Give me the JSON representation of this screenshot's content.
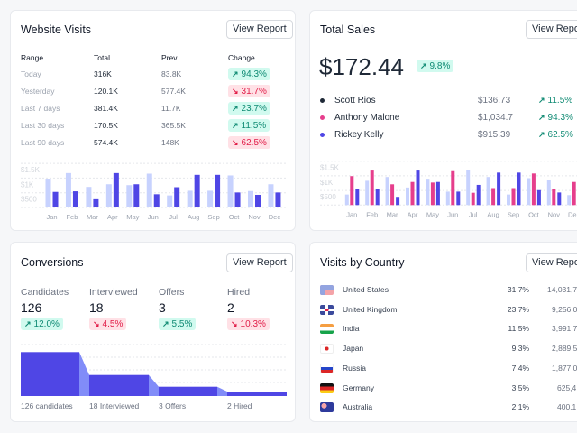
{
  "colors": {
    "accent": "#4f46e5",
    "accent_light": "#c7d2fe",
    "pink": "#e63e8c",
    "up_bg": "#d1faef",
    "up_text": "#0f8a73",
    "down_bg": "#ffe1e6",
    "down_text": "#e11d48"
  },
  "website_visits": {
    "title": "Website Visits",
    "button": "View Report",
    "headers": [
      "Range",
      "Total",
      "Prev",
      "Change"
    ],
    "rows": [
      {
        "range": "Today",
        "total": "316K",
        "prev": "83.8K",
        "change": "94.3%",
        "trend": "up"
      },
      {
        "range": "Yesterday",
        "total": "120.1K",
        "prev": "577.4K",
        "change": "31.7%",
        "trend": "down"
      },
      {
        "range": "Last 7 days",
        "total": "381.4K",
        "prev": "11.7K",
        "change": "23.7%",
        "trend": "up"
      },
      {
        "range": "Last 30 days",
        "total": "170.5K",
        "prev": "365.5K",
        "change": "11.5%",
        "trend": "up"
      },
      {
        "range": "Last 90 days",
        "total": "574.4K",
        "prev": "148K",
        "change": "62.5%",
        "trend": "down"
      }
    ]
  },
  "total_sales": {
    "title": "Total Sales",
    "button": "View Report",
    "amount": "$172.44",
    "change": "9.8%",
    "rows": [
      {
        "name": "Scott Rios",
        "amount": "$136.73",
        "change": "11.5%",
        "dot": "#1f2937"
      },
      {
        "name": "Anthony Malone",
        "amount": "$1,034.7",
        "change": "94.3%",
        "dot": "#e63e8c"
      },
      {
        "name": "Rickey Kelly",
        "amount": "$915.39",
        "change": "62.5%",
        "dot": "#4f46e5"
      }
    ]
  },
  "conversions": {
    "title": "Conversions",
    "button": "View Report",
    "stats": [
      {
        "label": "Candidates",
        "value": "126",
        "change": "12.0%",
        "trend": "up",
        "caption": "126 candidates"
      },
      {
        "label": "Interviewed",
        "value": "18",
        "change": "4.5%",
        "trend": "down",
        "caption": "18 Interviewed"
      },
      {
        "label": "Offers",
        "value": "3",
        "change": "5.5%",
        "trend": "up",
        "caption": "3 Offers"
      },
      {
        "label": "Hired",
        "value": "2",
        "change": "10.3%",
        "trend": "down",
        "caption": "2 Hired"
      }
    ]
  },
  "visits_by_country": {
    "title": "Visits by Country",
    "button": "View Report",
    "rows": [
      {
        "country": "United States",
        "pct": "31.7%",
        "visits": "14,031,7",
        "flag": "us"
      },
      {
        "country": "United Kingdom",
        "pct": "23.7%",
        "visits": "9,256,0",
        "flag": "uk"
      },
      {
        "country": "India",
        "pct": "11.5%",
        "visits": "3,991,7",
        "flag": "in"
      },
      {
        "country": "Japan",
        "pct": "9.3%",
        "visits": "2,889,5",
        "flag": "jp"
      },
      {
        "country": "Russia",
        "pct": "7.4%",
        "visits": "1,877,0",
        "flag": "ru"
      },
      {
        "country": "Germany",
        "pct": "3.5%",
        "visits": "625,4",
        "flag": "de"
      },
      {
        "country": "Australia",
        "pct": "2.1%",
        "visits": "400,1",
        "flag": "au"
      }
    ]
  },
  "chart_data": [
    {
      "type": "bar",
      "categories": [
        "Jan",
        "Feb",
        "Mar",
        "Apr",
        "May",
        "Jun",
        "Jul",
        "Aug",
        "Sep",
        "Oct",
        "Nov",
        "Dec"
      ],
      "yticks": [
        "$500",
        "$1K",
        "$1.5K"
      ],
      "ylim": [
        0,
        2000
      ],
      "grid": true,
      "series": [
        {
          "color": "#c7d2fe",
          "values": [
            980,
            1170,
            700,
            790,
            760,
            1150,
            410,
            570,
            570,
            1090,
            560,
            790
          ]
        },
        {
          "color": "#4f46e5",
          "values": [
            530,
            550,
            280,
            1170,
            790,
            450,
            690,
            1110,
            1110,
            510,
            430,
            510
          ]
        }
      ]
    },
    {
      "type": "bar",
      "categories": [
        "Jan",
        "Feb",
        "Mar",
        "Apr",
        "May",
        "Jun",
        "Jul",
        "Aug",
        "Sep",
        "Oct",
        "Nov",
        "Dec"
      ],
      "yticks": [
        "$500",
        "$1K",
        "$1.5K"
      ],
      "ylim": [
        0,
        2000
      ],
      "grid": true,
      "series": [
        {
          "color": "#c7d2fe",
          "values": [
            360,
            830,
            960,
            600,
            900,
            460,
            1200,
            960,
            360,
            920,
            850,
            340
          ]
        },
        {
          "color": "#e63e8c",
          "values": [
            990,
            1180,
            710,
            790,
            770,
            1160,
            420,
            580,
            580,
            1080,
            550,
            790
          ]
        },
        {
          "color": "#4f46e5",
          "values": [
            540,
            560,
            280,
            1180,
            790,
            460,
            690,
            1110,
            1110,
            510,
            430,
            510
          ]
        }
      ]
    }
  ]
}
